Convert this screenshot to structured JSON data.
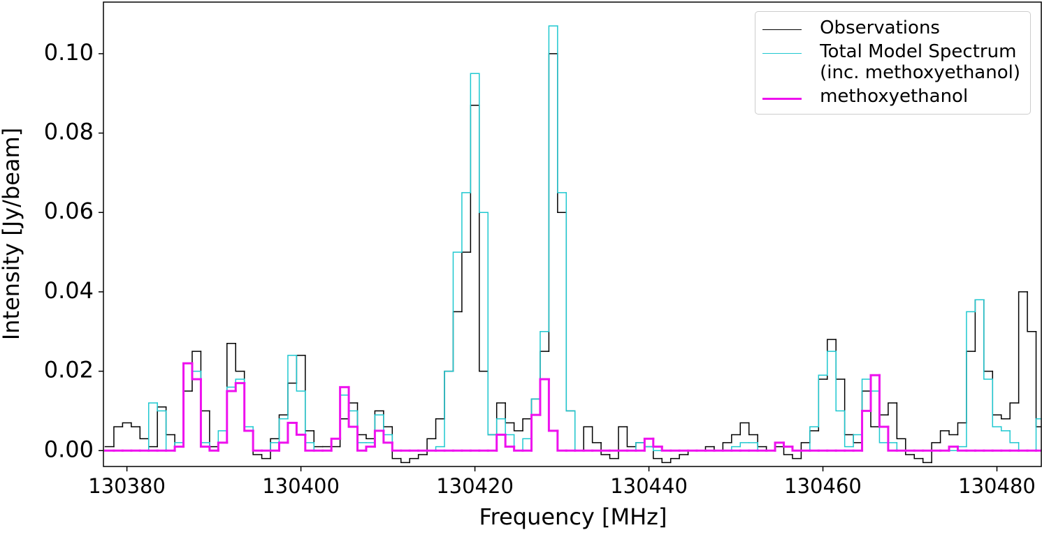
{
  "chart_data": {
    "type": "step",
    "xlabel": "Frequency [MHz]",
    "ylabel": "Intensity [Jy/beam]",
    "xlim": [
      130377.3,
      130485.1
    ],
    "ylim": [
      -0.004,
      0.113
    ],
    "xticks": [
      130380,
      130400,
      130420,
      130440,
      130460,
      130480
    ],
    "yticks": [
      {
        "value": 0,
        "label": "0.00"
      },
      {
        "value": 0.02,
        "label": "0.02"
      },
      {
        "value": 0.04,
        "label": "0.04"
      },
      {
        "value": 0.06,
        "label": "0.06"
      },
      {
        "value": 0.08,
        "label": "0.08"
      },
      {
        "value": 0.1,
        "label": "0.10"
      }
    ],
    "legend": "upper right",
    "x": [
      130378,
      130379,
      130380,
      130381,
      130382,
      130383,
      130384,
      130385,
      130386,
      130387,
      130388,
      130389,
      130390,
      130391,
      130392,
      130393,
      130394,
      130395,
      130396,
      130397,
      130398,
      130399,
      130400,
      130401,
      130402,
      130403,
      130404,
      130405,
      130406,
      130407,
      130408,
      130409,
      130410,
      130411,
      130412,
      130413,
      130414,
      130415,
      130416,
      130417,
      130418,
      130419,
      130420,
      130421,
      130422,
      130423,
      130424,
      130425,
      130426,
      130427,
      130428,
      130429,
      130430,
      130431,
      130432,
      130433,
      130434,
      130435,
      130436,
      130437,
      130438,
      130439,
      130440,
      130441,
      130442,
      130443,
      130444,
      130445,
      130446,
      130447,
      130448,
      130449,
      130450,
      130451,
      130452,
      130453,
      130454,
      130455,
      130456,
      130457,
      130458,
      130459,
      130460,
      130461,
      130462,
      130463,
      130464,
      130465,
      130466,
      130467,
      130468,
      130469,
      130470,
      130471,
      130472,
      130473,
      130474,
      130475,
      130476,
      130477,
      130478,
      130479,
      130480,
      130481,
      130482,
      130483,
      130484,
      130485
    ],
    "series": [
      {
        "name": "Observations",
        "color": "#000000",
        "width": 1.5,
        "values": [
          0.001,
          0.006,
          0.007,
          0.006,
          0.003,
          0.001,
          0.011,
          0.004,
          0.001,
          0.015,
          0.025,
          0.01,
          0.001,
          0.002,
          0.027,
          0.02,
          0.005,
          -0.001,
          -0.002,
          0.003,
          0.009,
          0.017,
          0.024,
          0.005,
          0.001,
          0.001,
          0.001,
          0.008,
          0.012,
          0.004,
          0.003,
          0.01,
          0.006,
          -0.002,
          -0.003,
          -0.002,
          -0.001,
          0.003,
          0.008,
          0.02,
          0.035,
          0.05,
          0.087,
          0.02,
          0.004,
          0.012,
          0.007,
          0.005,
          0.008,
          0.013,
          0.025,
          0.1,
          0.06,
          0.01,
          0,
          0.006,
          0.002,
          -0.001,
          -0.002,
          0.006,
          0.001,
          0.002,
          0.001,
          -0.002,
          -0.003,
          -0.002,
          -0.001,
          0,
          0,
          0.001,
          0,
          0.002,
          0.004,
          0.007,
          0.004,
          0.001,
          0,
          0.001,
          -0.001,
          -0.002,
          0.002,
          0.005,
          0.018,
          0.028,
          0.018,
          0.004,
          0.002,
          0.015,
          0.006,
          0.009,
          0.012,
          0.003,
          -0.001,
          -0.002,
          -0.003,
          0.002,
          0.005,
          0.004,
          0.007,
          0.025,
          0.038,
          0.02,
          0.009,
          0.008,
          0.012,
          0.04,
          0.03,
          0.006
        ]
      },
      {
        "name": "Total Model Spectrum\n(inc. methoxyethanol)",
        "color": "#1fc8d0",
        "width": 1.5,
        "values": [
          0,
          0,
          0,
          0,
          0,
          0.012,
          0.01,
          0,
          0.002,
          0.022,
          0.02,
          0.002,
          0,
          0.005,
          0.016,
          0.018,
          0.006,
          0,
          0,
          0.002,
          0.008,
          0.024,
          0.015,
          0.002,
          0,
          0,
          0.003,
          0.014,
          0.01,
          0.002,
          0.002,
          0.009,
          0.004,
          0,
          0,
          0,
          0,
          0,
          0.001,
          0.02,
          0.05,
          0.065,
          0.095,
          0.06,
          0.004,
          0.008,
          0.004,
          0,
          0.003,
          0.013,
          0.03,
          0.107,
          0.065,
          0.01,
          0,
          0,
          0,
          0,
          0,
          0,
          0,
          0.002,
          0.001,
          0,
          0,
          0,
          0,
          0,
          0,
          0,
          0,
          0,
          0.001,
          0.002,
          0.002,
          0,
          0,
          0.002,
          0.001,
          0,
          0,
          0.006,
          0.019,
          0.025,
          0.01,
          0.001,
          0.004,
          0.018,
          0.015,
          0.002,
          0.002,
          0,
          0,
          0,
          0,
          0,
          0,
          0,
          0.001,
          0.035,
          0.038,
          0.018,
          0.006,
          0.005,
          0.002,
          0,
          0,
          0.008
        ]
      },
      {
        "name": "methoxyethanol",
        "color": "#ee11ee",
        "width": 3,
        "values": [
          0,
          0,
          0,
          0,
          0,
          0,
          0,
          0,
          0.001,
          0.022,
          0.018,
          0.001,
          0,
          0.002,
          0.015,
          0.017,
          0.005,
          0,
          0,
          0,
          0.002,
          0.007,
          0.004,
          0,
          0,
          0,
          0.003,
          0.016,
          0.006,
          0,
          0.001,
          0.005,
          0.002,
          0,
          0,
          0,
          0,
          0,
          0,
          0,
          0,
          0,
          0,
          0,
          0,
          0.004,
          0.001,
          0,
          0,
          0.009,
          0.018,
          0.005,
          0,
          0,
          0,
          0,
          0,
          0,
          0,
          0,
          0,
          0,
          0.003,
          0.001,
          0,
          0,
          0,
          0,
          0,
          0,
          0,
          0,
          0,
          0,
          0,
          0,
          0,
          0.002,
          0.001,
          0,
          0,
          0,
          0,
          0,
          0,
          0,
          0,
          0.01,
          0.019,
          0.006,
          0,
          0,
          0,
          0,
          0,
          0,
          0,
          0.001,
          0,
          0,
          0,
          0,
          0,
          0,
          0,
          0,
          0,
          0
        ]
      }
    ]
  }
}
